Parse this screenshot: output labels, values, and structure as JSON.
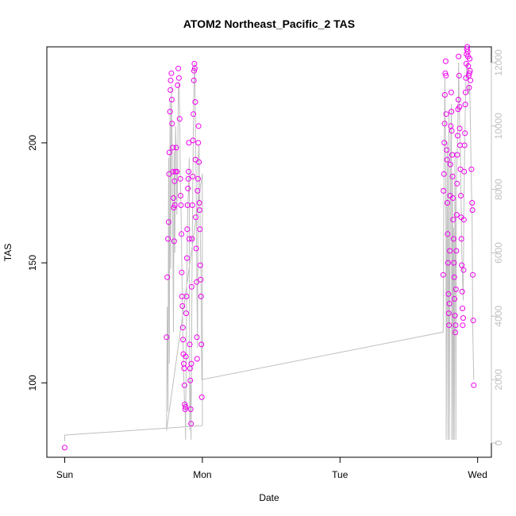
{
  "chart_data": {
    "type": "scatter",
    "title": "ATOM2 Northeast_Pacific_2 TAS",
    "xlabel": "Date",
    "ylabel": "TAS",
    "x_ticks": [
      {
        "day": 0,
        "label": "Sun"
      },
      {
        "day": 1,
        "label": "Mon"
      },
      {
        "day": 2,
        "label": "Tue"
      },
      {
        "day": 3,
        "label": "Wed"
      }
    ],
    "xlim": [
      -0.13,
      3.1
    ],
    "ylim": [
      69,
      240
    ],
    "y_ticks": [
      100,
      150,
      200
    ],
    "y2lim": [
      -450,
      12500
    ],
    "y2_ticks": [
      0,
      2000,
      4000,
      6000,
      8000,
      10000,
      12000
    ],
    "grid": false,
    "points_color": "#ee00ee",
    "line_color": "#bfbfbf",
    "axis_color": "#000000",
    "right_axis_color": "#c0c0c0",
    "tas_points": [
      {
        "x": 0.0,
        "y": 73.0
      },
      {
        "x": 0.74,
        "y": 119.0
      },
      {
        "x": 0.745,
        "y": 144.0
      },
      {
        "x": 0.75,
        "y": 160.0
      },
      {
        "x": 0.755,
        "y": 167.0
      },
      {
        "x": 0.758,
        "y": 187.0
      },
      {
        "x": 0.76,
        "y": 196.0
      },
      {
        "x": 0.765,
        "y": 213.0
      },
      {
        "x": 0.768,
        "y": 222.0
      },
      {
        "x": 0.77,
        "y": 226.0
      },
      {
        "x": 0.775,
        "y": 229.0
      },
      {
        "x": 0.778,
        "y": 218.0
      },
      {
        "x": 0.78,
        "y": 208.0
      },
      {
        "x": 0.785,
        "y": 198.0
      },
      {
        "x": 0.788,
        "y": 188.0
      },
      {
        "x": 0.79,
        "y": 177.0
      },
      {
        "x": 0.792,
        "y": 173.0
      },
      {
        "x": 0.795,
        "y": 159.0
      },
      {
        "x": 0.798,
        "y": 184.0
      },
      {
        "x": 0.8,
        "y": 174.0
      },
      {
        "x": 0.805,
        "y": 188.0
      },
      {
        "x": 0.81,
        "y": 198.0
      },
      {
        "x": 0.815,
        "y": 188.0
      },
      {
        "x": 0.82,
        "y": 224.0
      },
      {
        "x": 0.825,
        "y": 231.0
      },
      {
        "x": 0.83,
        "y": 227.0
      },
      {
        "x": 0.835,
        "y": 210.0
      },
      {
        "x": 0.84,
        "y": 185.0
      },
      {
        "x": 0.842,
        "y": 178.0
      },
      {
        "x": 0.845,
        "y": 174.0
      },
      {
        "x": 0.848,
        "y": 162.0
      },
      {
        "x": 0.85,
        "y": 146.0
      },
      {
        "x": 0.852,
        "y": 136.0
      },
      {
        "x": 0.855,
        "y": 132.0
      },
      {
        "x": 0.858,
        "y": 123.0
      },
      {
        "x": 0.86,
        "y": 118.0
      },
      {
        "x": 0.862,
        "y": 112.0
      },
      {
        "x": 0.865,
        "y": 108.0
      },
      {
        "x": 0.868,
        "y": 106.0
      },
      {
        "x": 0.87,
        "y": 99.0
      },
      {
        "x": 0.872,
        "y": 91.0
      },
      {
        "x": 0.875,
        "y": 89.0
      },
      {
        "x": 0.878,
        "y": 90.0
      },
      {
        "x": 0.88,
        "y": 111.0
      },
      {
        "x": 0.882,
        "y": 129.0
      },
      {
        "x": 0.885,
        "y": 136.0
      },
      {
        "x": 0.888,
        "y": 152.0
      },
      {
        "x": 0.89,
        "y": 164.0
      },
      {
        "x": 0.892,
        "y": 174.0
      },
      {
        "x": 0.895,
        "y": 181.0
      },
      {
        "x": 0.898,
        "y": 185.0
      },
      {
        "x": 0.9,
        "y": 188.0
      },
      {
        "x": 0.902,
        "y": 200.0
      },
      {
        "x": 0.905,
        "y": 160.0
      },
      {
        "x": 0.908,
        "y": 116.0
      },
      {
        "x": 0.91,
        "y": 106.0
      },
      {
        "x": 0.912,
        "y": 101.0
      },
      {
        "x": 0.915,
        "y": 89.0
      },
      {
        "x": 0.918,
        "y": 83.0
      },
      {
        "x": 0.92,
        "y": 108.0
      },
      {
        "x": 0.922,
        "y": 140.0
      },
      {
        "x": 0.925,
        "y": 160.0
      },
      {
        "x": 0.928,
        "y": 174.0
      },
      {
        "x": 0.93,
        "y": 186.0
      },
      {
        "x": 0.932,
        "y": 201.0
      },
      {
        "x": 0.935,
        "y": 212.0
      },
      {
        "x": 0.938,
        "y": 226.0
      },
      {
        "x": 0.94,
        "y": 230.0
      },
      {
        "x": 0.942,
        "y": 233.0
      },
      {
        "x": 0.945,
        "y": 231.0
      },
      {
        "x": 0.948,
        "y": 217.0
      },
      {
        "x": 0.95,
        "y": 193.0
      },
      {
        "x": 0.952,
        "y": 169.0
      },
      {
        "x": 0.955,
        "y": 156.0
      },
      {
        "x": 0.958,
        "y": 142.0
      },
      {
        "x": 0.96,
        "y": 119.0
      },
      {
        "x": 0.962,
        "y": 110.0
      },
      {
        "x": 0.965,
        "y": 180.0
      },
      {
        "x": 0.968,
        "y": 185.0
      },
      {
        "x": 0.97,
        "y": 200.0
      },
      {
        "x": 0.972,
        "y": 207.0
      },
      {
        "x": 0.975,
        "y": 192.0
      },
      {
        "x": 0.978,
        "y": 175.0
      },
      {
        "x": 0.98,
        "y": 172.0
      },
      {
        "x": 0.982,
        "y": 164.0
      },
      {
        "x": 0.985,
        "y": 149.0
      },
      {
        "x": 0.988,
        "y": 143.0
      },
      {
        "x": 0.99,
        "y": 136.0
      },
      {
        "x": 0.993,
        "y": 116.0
      },
      {
        "x": 0.996,
        "y": 94.0
      },
      {
        "x": 2.75,
        "y": 145.0
      },
      {
        "x": 2.752,
        "y": 180.0
      },
      {
        "x": 2.755,
        "y": 187.0
      },
      {
        "x": 2.758,
        "y": 200.0
      },
      {
        "x": 2.76,
        "y": 208.0
      },
      {
        "x": 2.762,
        "y": 220.0
      },
      {
        "x": 2.765,
        "y": 229.0
      },
      {
        "x": 2.768,
        "y": 234.0
      },
      {
        "x": 2.77,
        "y": 228.0
      },
      {
        "x": 2.772,
        "y": 212.0
      },
      {
        "x": 2.775,
        "y": 197.0
      },
      {
        "x": 2.778,
        "y": 193.0
      },
      {
        "x": 2.78,
        "y": 175.0
      },
      {
        "x": 2.782,
        "y": 162.0
      },
      {
        "x": 2.785,
        "y": 150.0
      },
      {
        "x": 2.788,
        "y": 137.0
      },
      {
        "x": 2.79,
        "y": 129.0
      },
      {
        "x": 2.792,
        "y": 124.0
      },
      {
        "x": 2.795,
        "y": 133.0
      },
      {
        "x": 2.798,
        "y": 155.0
      },
      {
        "x": 2.8,
        "y": 178.0
      },
      {
        "x": 2.802,
        "y": 191.0
      },
      {
        "x": 2.805,
        "y": 207.0
      },
      {
        "x": 2.808,
        "y": 221.0
      },
      {
        "x": 2.81,
        "y": 213.0
      },
      {
        "x": 2.812,
        "y": 205.0
      },
      {
        "x": 2.815,
        "y": 195.0
      },
      {
        "x": 2.818,
        "y": 186.0
      },
      {
        "x": 2.82,
        "y": 177.0
      },
      {
        "x": 2.822,
        "y": 168.0
      },
      {
        "x": 2.825,
        "y": 160.0
      },
      {
        "x": 2.828,
        "y": 150.0
      },
      {
        "x": 2.83,
        "y": 144.0
      },
      {
        "x": 2.832,
        "y": 135.0
      },
      {
        "x": 2.835,
        "y": 128.0
      },
      {
        "x": 2.838,
        "y": 121.0
      },
      {
        "x": 2.84,
        "y": 124.0
      },
      {
        "x": 2.842,
        "y": 139.0
      },
      {
        "x": 2.845,
        "y": 155.0
      },
      {
        "x": 2.848,
        "y": 170.0
      },
      {
        "x": 2.85,
        "y": 183.0
      },
      {
        "x": 2.852,
        "y": 195.0
      },
      {
        "x": 2.855,
        "y": 203.0
      },
      {
        "x": 2.858,
        "y": 214.0
      },
      {
        "x": 2.86,
        "y": 218.0
      },
      {
        "x": 2.862,
        "y": 236.0
      },
      {
        "x": 2.865,
        "y": 228.0
      },
      {
        "x": 2.868,
        "y": 215.0
      },
      {
        "x": 2.87,
        "y": 206.0
      },
      {
        "x": 2.872,
        "y": 199.0
      },
      {
        "x": 2.875,
        "y": 189.0
      },
      {
        "x": 2.878,
        "y": 178.0
      },
      {
        "x": 2.88,
        "y": 169.0
      },
      {
        "x": 2.882,
        "y": 160.0
      },
      {
        "x": 2.885,
        "y": 149.0
      },
      {
        "x": 2.888,
        "y": 138.0
      },
      {
        "x": 2.89,
        "y": 131.0
      },
      {
        "x": 2.892,
        "y": 124.0
      },
      {
        "x": 2.895,
        "y": 127.0
      },
      {
        "x": 2.898,
        "y": 147.0
      },
      {
        "x": 2.9,
        "y": 168.0
      },
      {
        "x": 2.902,
        "y": 188.0
      },
      {
        "x": 2.905,
        "y": 199.0
      },
      {
        "x": 2.908,
        "y": 204.0
      },
      {
        "x": 2.91,
        "y": 216.0
      },
      {
        "x": 2.912,
        "y": 221.0
      },
      {
        "x": 2.915,
        "y": 227.0
      },
      {
        "x": 2.918,
        "y": 233.0
      },
      {
        "x": 2.92,
        "y": 237.0
      },
      {
        "x": 2.922,
        "y": 239.0
      },
      {
        "x": 2.925,
        "y": 240.0
      },
      {
        "x": 2.928,
        "y": 238.0
      },
      {
        "x": 2.93,
        "y": 236.0
      },
      {
        "x": 2.932,
        "y": 232.0
      },
      {
        "x": 2.935,
        "y": 228.0
      },
      {
        "x": 2.938,
        "y": 223.0
      },
      {
        "x": 2.94,
        "y": 229.0
      },
      {
        "x": 2.942,
        "y": 235.0
      },
      {
        "x": 2.945,
        "y": 230.0
      },
      {
        "x": 2.948,
        "y": 226.0
      },
      {
        "x": 2.955,
        "y": 189.0
      },
      {
        "x": 2.96,
        "y": 175.0
      },
      {
        "x": 2.962,
        "y": 172.0
      },
      {
        "x": 2.965,
        "y": 145.0
      },
      {
        "x": 2.968,
        "y": 126.0
      },
      {
        "x": 2.972,
        "y": 99.0
      }
    ],
    "line_series": [
      [
        0.0,
        50
      ],
      [
        0.0,
        250
      ],
      [
        1.0,
        550
      ],
      [
        1.0,
        8500
      ],
      [
        0.74,
        400
      ],
      [
        0.745,
        4300
      ],
      [
        0.75,
        1000
      ],
      [
        0.755,
        9000
      ],
      [
        0.76,
        2500
      ],
      [
        0.765,
        10800
      ],
      [
        0.77,
        5500
      ],
      [
        0.775,
        11300
      ],
      [
        0.78,
        9500
      ],
      [
        0.785,
        7000
      ],
      [
        0.79,
        3500
      ],
      [
        0.795,
        9200
      ],
      [
        0.8,
        6000
      ],
      [
        0.805,
        10000
      ],
      [
        0.81,
        9200
      ],
      [
        0.815,
        7200
      ],
      [
        0.82,
        8500
      ],
      [
        0.825,
        11000
      ],
      [
        0.83,
        11400
      ],
      [
        0.835,
        10500
      ],
      [
        0.84,
        8200
      ],
      [
        0.845,
        7500
      ],
      [
        0.85,
        5800
      ],
      [
        0.855,
        4200
      ],
      [
        0.86,
        3200
      ],
      [
        0.865,
        2100
      ],
      [
        0.87,
        1300
      ],
      [
        0.875,
        1100
      ],
      [
        0.878,
        100
      ],
      [
        0.882,
        2800
      ],
      [
        0.885,
        4300
      ],
      [
        0.89,
        6300
      ],
      [
        0.895,
        7600
      ],
      [
        0.9,
        8000
      ],
      [
        0.905,
        9000
      ],
      [
        0.908,
        400
      ],
      [
        0.912,
        2000
      ],
      [
        0.915,
        1500
      ],
      [
        0.918,
        100
      ],
      [
        0.92,
        1500
      ],
      [
        0.925,
        5500
      ],
      [
        0.93,
        8000
      ],
      [
        0.935,
        10000
      ],
      [
        0.94,
        11500
      ],
      [
        0.945,
        12000
      ],
      [
        0.95,
        9600
      ],
      [
        0.955,
        8400
      ],
      [
        0.96,
        5000
      ],
      [
        0.965,
        3000
      ],
      [
        0.97,
        9000
      ],
      [
        0.975,
        9400
      ],
      [
        0.98,
        8500
      ],
      [
        0.985,
        6500
      ],
      [
        0.99,
        5300
      ],
      [
        0.996,
        2000
      ],
      [
        2.75,
        3500
      ],
      [
        2.752,
        6000
      ],
      [
        2.755,
        8200
      ],
      [
        2.758,
        9500
      ],
      [
        2.76,
        10800
      ],
      [
        2.762,
        11500
      ],
      [
        2.765,
        10200
      ],
      [
        2.768,
        8600
      ],
      [
        2.77,
        6500
      ],
      [
        2.772,
        100
      ],
      [
        2.775,
        5000
      ],
      [
        2.778,
        8000
      ],
      [
        2.78,
        9500
      ],
      [
        2.782,
        4000
      ],
      [
        2.785,
        100
      ],
      [
        2.788,
        5500
      ],
      [
        2.79,
        8700
      ],
      [
        2.792,
        10500
      ],
      [
        2.795,
        100
      ],
      [
        2.8,
        6000
      ],
      [
        2.805,
        9500
      ],
      [
        2.81,
        10700
      ],
      [
        2.812,
        100
      ],
      [
        2.818,
        8500
      ],
      [
        2.822,
        100
      ],
      [
        2.825,
        6800
      ],
      [
        2.83,
        100
      ],
      [
        2.835,
        9200
      ],
      [
        2.84,
        5000
      ],
      [
        2.842,
        100
      ],
      [
        2.845,
        7800
      ],
      [
        2.85,
        9000
      ],
      [
        2.855,
        9800
      ],
      [
        2.86,
        11000
      ],
      [
        2.862,
        12000
      ],
      [
        2.865,
        11000
      ],
      [
        2.87,
        10000
      ],
      [
        2.875,
        9000
      ],
      [
        2.88,
        7600
      ],
      [
        2.885,
        6000
      ],
      [
        2.89,
        5200
      ],
      [
        2.895,
        4500
      ],
      [
        2.9,
        7300
      ],
      [
        2.905,
        9000
      ],
      [
        2.91,
        10500
      ],
      [
        2.915,
        11400
      ],
      [
        2.92,
        11800
      ],
      [
        2.925,
        12000
      ],
      [
        2.93,
        11600
      ],
      [
        2.935,
        11000
      ],
      [
        2.94,
        11300
      ],
      [
        2.945,
        10800
      ],
      [
        2.955,
        8000
      ],
      [
        2.96,
        7200
      ],
      [
        2.965,
        3500
      ],
      [
        2.972,
        2000
      ]
    ]
  }
}
